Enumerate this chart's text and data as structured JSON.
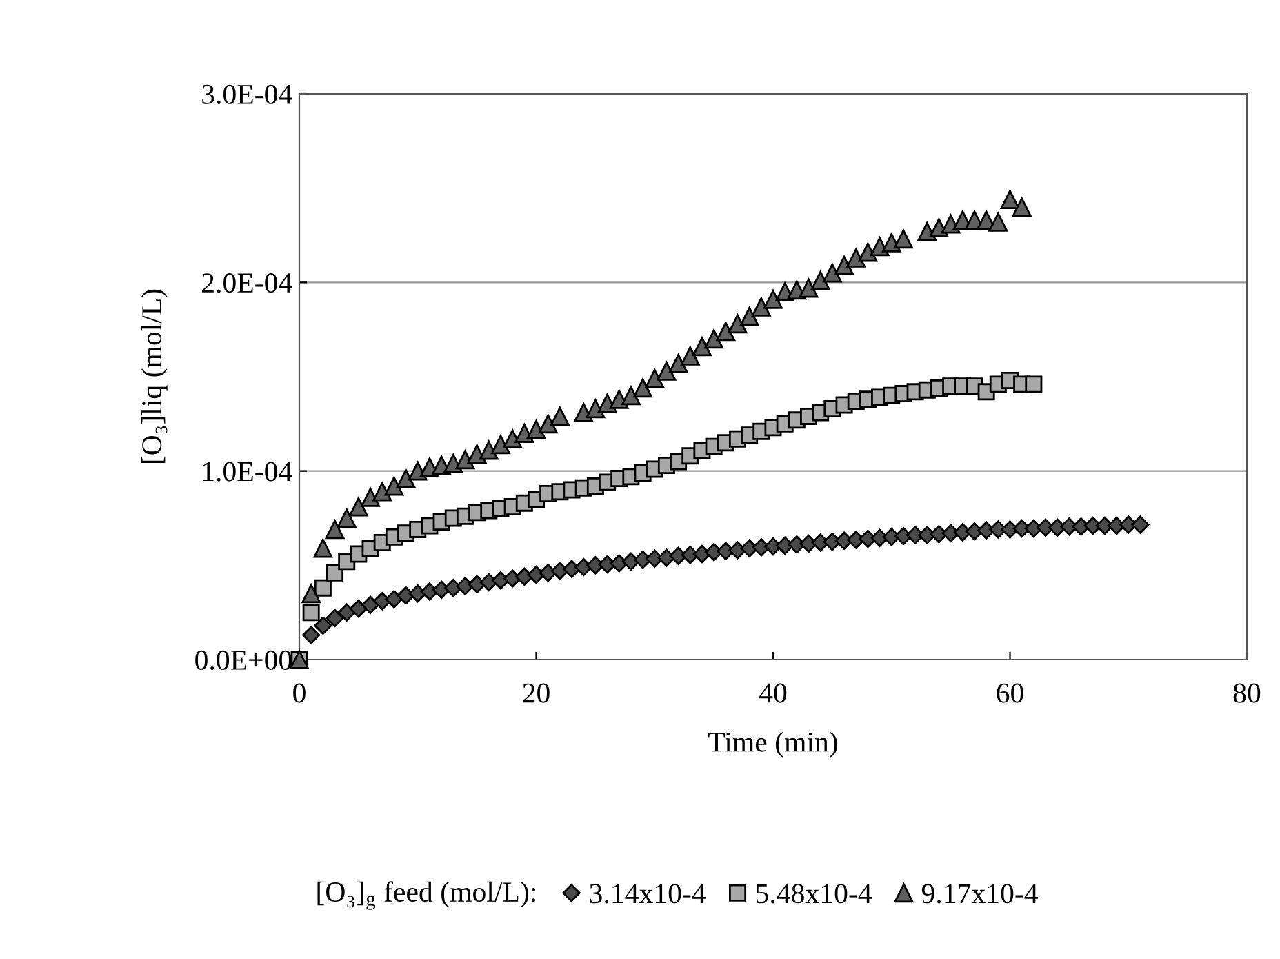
{
  "chart_data": {
    "type": "scatter",
    "xlabel": "Time (min)",
    "ylabel": "[O₃]liq (mol/L)",
    "legend_title": "[O₃]$_{g}$ feed (mol/L):",
    "xlim": [
      0,
      80
    ],
    "xticks": [
      0,
      20,
      40,
      60,
      80
    ],
    "ylim": [
      0,
      0.0003
    ],
    "yticks": [
      {
        "value": 0,
        "label": "0.0E+00"
      },
      {
        "value": 0.0001,
        "label": "1.0E-04"
      },
      {
        "value": 0.0002,
        "label": "2.0E-04"
      },
      {
        "value": 0.0003,
        "label": "3.0E-04"
      }
    ],
    "grid": "y",
    "legend": "bottom",
    "series": [
      {
        "name": "3.14x10-4",
        "color": "#4a4a4a",
        "marker": "diamond",
        "x": [
          1,
          2,
          3,
          4,
          5,
          6,
          7,
          8,
          9,
          10,
          11,
          12,
          13,
          14,
          15,
          16,
          17,
          18,
          19,
          20,
          21,
          22,
          23,
          24,
          25,
          26,
          27,
          28,
          29,
          30,
          31,
          32,
          33,
          34,
          35,
          36,
          37,
          38,
          39,
          40,
          41,
          42,
          43,
          44,
          45,
          46,
          47,
          48,
          49,
          50,
          51,
          52,
          53,
          54,
          55,
          56,
          57,
          58,
          59,
          60,
          61,
          62,
          63,
          64,
          65,
          66,
          67,
          68,
          69,
          70,
          71
        ],
        "values": [
          1.3e-05,
          1.8e-05,
          2.2e-05,
          2.5e-05,
          2.7e-05,
          2.9e-05,
          3.1e-05,
          3.2e-05,
          3.4e-05,
          3.5e-05,
          3.6e-05,
          3.7e-05,
          3.8e-05,
          3.9e-05,
          4e-05,
          4.1e-05,
          4.2e-05,
          4.3e-05,
          4.4e-05,
          4.5e-05,
          4.6e-05,
          4.7e-05,
          4.8e-05,
          4.9e-05,
          5e-05,
          5.05e-05,
          5.1e-05,
          5.2e-05,
          5.3e-05,
          5.35e-05,
          5.4e-05,
          5.5e-05,
          5.55e-05,
          5.6e-05,
          5.7e-05,
          5.75e-05,
          5.8e-05,
          5.9e-05,
          5.95e-05,
          6e-05,
          6.05e-05,
          6.1e-05,
          6.15e-05,
          6.2e-05,
          6.25e-05,
          6.3e-05,
          6.35e-05,
          6.4e-05,
          6.45e-05,
          6.5e-05,
          6.55e-05,
          6.6e-05,
          6.6e-05,
          6.65e-05,
          6.7e-05,
          6.75e-05,
          6.8e-05,
          6.85e-05,
          6.9e-05,
          6.9e-05,
          6.95e-05,
          6.95e-05,
          7e-05,
          7e-05,
          7.05e-05,
          7.05e-05,
          7.1e-05,
          7.1e-05,
          7.1e-05,
          7.15e-05,
          7.15e-05
        ]
      },
      {
        "name": "5.48x10-4",
        "color": "#a8a8a8",
        "marker": "square",
        "x": [
          0,
          1,
          2,
          3,
          4,
          5,
          6,
          7,
          8,
          9,
          10,
          11,
          12,
          13,
          14,
          15,
          16,
          17,
          18,
          19,
          20,
          21,
          22,
          23,
          24,
          25,
          26,
          27,
          28,
          29,
          30,
          31,
          32,
          33,
          34,
          35,
          36,
          37,
          38,
          39,
          40,
          41,
          42,
          43,
          44,
          45,
          46,
          47,
          48,
          49,
          50,
          51,
          52,
          53,
          54,
          55,
          56,
          57,
          58,
          59,
          60,
          61,
          62
        ],
        "values": [
          0,
          2.5e-05,
          3.8e-05,
          4.6e-05,
          5.2e-05,
          5.6e-05,
          5.9e-05,
          6.2e-05,
          6.5e-05,
          6.7e-05,
          6.9e-05,
          7.1e-05,
          7.3e-05,
          7.5e-05,
          7.6e-05,
          7.8e-05,
          7.9e-05,
          8e-05,
          8.1e-05,
          8.3e-05,
          8.5e-05,
          8.8e-05,
          8.9e-05,
          9e-05,
          9.1e-05,
          9.2e-05,
          9.4e-05,
          9.6e-05,
          9.7e-05,
          9.9e-05,
          0.000101,
          0.000103,
          0.000105,
          0.000108,
          0.000111,
          0.000113,
          0.000115,
          0.000117,
          0.000119,
          0.000121,
          0.000123,
          0.000125,
          0.000127,
          0.000129,
          0.000131,
          0.000133,
          0.000135,
          0.000137,
          0.000138,
          0.000139,
          0.00014,
          0.000141,
          0.000142,
          0.000143,
          0.000144,
          0.000145,
          0.000145,
          0.000145,
          0.000142,
          0.000146,
          0.000148,
          0.000146,
          0.000146
        ]
      },
      {
        "name": "9.17x10-4",
        "color": "#606060",
        "marker": "triangle",
        "x": [
          0,
          1,
          2,
          3,
          4,
          5,
          6,
          7,
          8,
          9,
          10,
          11,
          12,
          13,
          14,
          15,
          16,
          17,
          18,
          19,
          20,
          21,
          22,
          24,
          25,
          26,
          27,
          28,
          29,
          30,
          31,
          32,
          33,
          34,
          35,
          36,
          37,
          38,
          39,
          40,
          41,
          42,
          43,
          44,
          45,
          46,
          47,
          48,
          49,
          50,
          51,
          53,
          54,
          55,
          56,
          57,
          58,
          59,
          60,
          61
        ],
        "values": [
          0,
          3.5e-05,
          5.9e-05,
          6.9e-05,
          7.5e-05,
          8.1e-05,
          8.6e-05,
          8.9e-05,
          9.2e-05,
          9.6e-05,
          0.0001,
          0.000102,
          0.000103,
          0.000104,
          0.000106,
          0.000109,
          0.000111,
          0.000114,
          0.000117,
          0.00012,
          0.000122,
          0.000125,
          0.000129,
          0.000131,
          0.000133,
          0.000136,
          0.000138,
          0.00014,
          0.000144,
          0.000149,
          0.000153,
          0.000157,
          0.000161,
          0.000166,
          0.00017,
          0.000174,
          0.000178,
          0.000182,
          0.000187,
          0.000191,
          0.000195,
          0.000196,
          0.000197,
          0.000201,
          0.000205,
          0.000209,
          0.000213,
          0.000216,
          0.000219,
          0.000221,
          0.000223,
          0.000227,
          0.000229,
          0.000231,
          0.000233,
          0.000233,
          0.000233,
          0.000232,
          0.000244,
          0.00024
        ]
      }
    ]
  }
}
